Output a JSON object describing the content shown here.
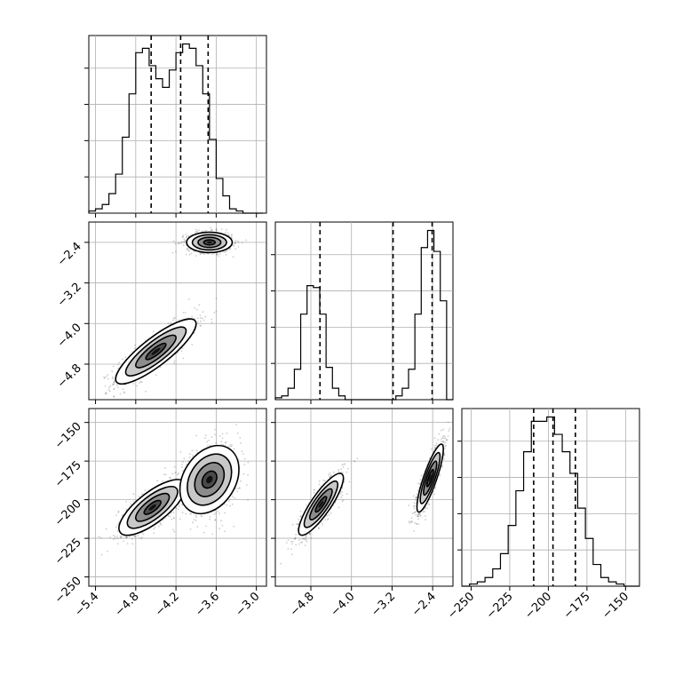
{
  "chart_data": {
    "type": "corner",
    "parameters": [
      {
        "id": "p1",
        "range": [
          -5.5,
          -2.85
        ],
        "ticks": [
          -5.4,
          -4.8,
          -4.2,
          -3.6,
          -3.0
        ],
        "tick_labels": [
          "−5.4",
          "−4.8",
          "−4.2",
          "−3.6",
          "−3.0"
        ]
      },
      {
        "id": "p2",
        "range": [
          -5.5,
          -2.0
        ],
        "ticks": [
          -4.8,
          -4.0,
          -3.2,
          -2.4
        ],
        "tick_labels": [
          "−4.8",
          "−4.0",
          "−3.2",
          "−2.4"
        ]
      },
      {
        "id": "p3",
        "range": [
          -256,
          -141
        ],
        "ticks": [
          -250,
          -225,
          -200,
          -175,
          -150
        ],
        "tick_labels": [
          "−250",
          "−225",
          "−200",
          "−175",
          "−150"
        ]
      }
    ],
    "histograms": [
      {
        "param": "p1",
        "bin_edges": [
          -5.5,
          -5.4,
          -5.3,
          -5.2,
          -5.1,
          -5.0,
          -4.9,
          -4.8,
          -4.7,
          -4.6,
          -4.5,
          -4.4,
          -4.3,
          -4.2,
          -4.1,
          -4.0,
          -3.9,
          -3.8,
          -3.7,
          -3.6,
          -3.5,
          -3.4,
          -3.3,
          -3.2,
          -3.1,
          -3.0,
          -2.9
        ],
        "counts": [
          0.01,
          0.02,
          0.04,
          0.09,
          0.18,
          0.35,
          0.55,
          0.74,
          0.76,
          0.68,
          0.62,
          0.58,
          0.66,
          0.74,
          0.78,
          0.76,
          0.68,
          0.55,
          0.34,
          0.16,
          0.08,
          0.02,
          0.01,
          0.0,
          0.0,
          0.0
        ],
        "quantiles": [
          -4.57,
          -4.13,
          -3.72
        ]
      },
      {
        "param": "p2",
        "bin_edges": [
          -5.5,
          -5.375,
          -5.25,
          -5.125,
          -5.0,
          -4.875,
          -4.75,
          -4.625,
          -4.5,
          -4.375,
          -4.25,
          -4.125,
          -4.0,
          -3.875,
          -3.75,
          -3.625,
          -3.5,
          -3.375,
          -3.25,
          -3.125,
          -3.0,
          -2.875,
          -2.75,
          -2.625,
          -2.5,
          -2.375,
          -2.25,
          -2.125,
          -2.0
        ],
        "counts": [
          0.01,
          0.02,
          0.06,
          0.16,
          0.45,
          0.6,
          0.59,
          0.45,
          0.17,
          0.06,
          0.02,
          0.0,
          0.0,
          0.0,
          0.0,
          0.0,
          0.0,
          0.0,
          0.0,
          0.02,
          0.06,
          0.16,
          0.45,
          0.8,
          0.89,
          0.78,
          0.52,
          0.0
        ],
        "quantiles": [
          -4.62,
          -3.18,
          -2.41
        ]
      },
      {
        "param": "p3",
        "bin_edges": [
          -256,
          -251,
          -246,
          -241,
          -236,
          -231,
          -226,
          -221,
          -216,
          -211,
          -206,
          -201,
          -196,
          -191,
          -186,
          -181,
          -176,
          -171,
          -166,
          -161,
          -156,
          -151,
          -146,
          -141
        ],
        "counts": [
          0.0,
          0.01,
          0.02,
          0.04,
          0.08,
          0.15,
          0.28,
          0.44,
          0.62,
          0.76,
          0.76,
          0.78,
          0.7,
          0.62,
          0.52,
          0.36,
          0.22,
          0.1,
          0.04,
          0.02,
          0.01,
          0.0,
          0.0
        ],
        "quantiles": [
          -209.5,
          -197.0,
          -182.5
        ]
      }
    ],
    "joint_panels": [
      {
        "x_param": "p1",
        "y_param": "p2",
        "modes": [
          {
            "mean": [
              -4.5,
              -4.55
            ],
            "sd": [
              0.3,
              0.32
            ],
            "corr": 0.85,
            "weight": 0.5
          },
          {
            "mean": [
              -3.7,
              -2.4
            ],
            "sd": [
              0.17,
              0.1
            ],
            "corr": 0.0,
            "weight": 0.5
          }
        ]
      },
      {
        "x_param": "p1",
        "y_param": "p3",
        "modes": [
          {
            "mean": [
              -4.55,
              -205
            ],
            "sd": [
              0.25,
              9
            ],
            "corr": 0.75,
            "weight": 0.5
          },
          {
            "mean": [
              -3.7,
              -187
            ],
            "sd": [
              0.22,
              11
            ],
            "corr": 0.3,
            "weight": 0.5
          }
        ]
      },
      {
        "x_param": "p2",
        "y_param": "p3",
        "modes": [
          {
            "mean": [
              -4.6,
              -203
            ],
            "sd": [
              0.22,
              10
            ],
            "corr": 0.85,
            "weight": 0.5
          },
          {
            "mean": [
              -2.45,
              -186
            ],
            "sd": [
              0.13,
              11
            ],
            "corr": 0.85,
            "weight": 0.5
          }
        ]
      }
    ],
    "grid": true,
    "legend": null
  }
}
